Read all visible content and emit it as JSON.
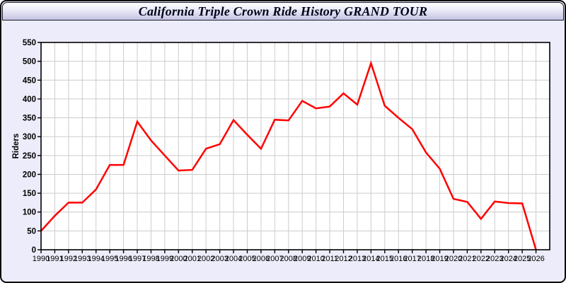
{
  "window": {
    "title": "California Triple Crown Ride History GRAND TOUR"
  },
  "colors": {
    "background": "#ECECFA",
    "titlebar_top": "#FDFDFF",
    "titlebar_bottom": "#C2C2E2",
    "frame_border": "#0A0A0A",
    "plot_background": "#FFFFFF",
    "plot_border": "#000000",
    "gridline": "#CCCCCC",
    "axis_text": "#000000",
    "series_line": "#FF0000"
  },
  "chart_data": {
    "type": "line",
    "title": "California Triple Crown Ride History GRAND TOUR",
    "xlabel": "",
    "ylabel": "Riders",
    "x": [
      1990,
      1991,
      1992,
      1993,
      1994,
      1995,
      1996,
      1997,
      1998,
      1999,
      2000,
      2001,
      2002,
      2003,
      2004,
      2005,
      2006,
      2007,
      2008,
      2009,
      2010,
      2011,
      2012,
      2013,
      2014,
      2015,
      2016,
      2017,
      2018,
      2019,
      2020,
      2021,
      2022,
      2023,
      2024,
      2025,
      2026
    ],
    "series": [
      {
        "name": "Riders",
        "color": "#FF0000",
        "values": [
          50,
          90,
          125,
          125,
          160,
          225,
          225,
          340,
          290,
          250,
          210,
          212,
          268,
          280,
          344,
          305,
          268,
          345,
          343,
          395,
          375,
          380,
          415,
          385,
          495,
          382,
          350,
          320,
          258,
          215,
          135,
          127,
          82,
          128,
          124,
          123,
          0
        ]
      }
    ],
    "ylim": [
      0,
      550
    ],
    "ytick_step": 50,
    "yticks": [
      0,
      50,
      100,
      150,
      200,
      250,
      300,
      350,
      400,
      450,
      500,
      550
    ],
    "grid": true,
    "legend_position": "none"
  }
}
